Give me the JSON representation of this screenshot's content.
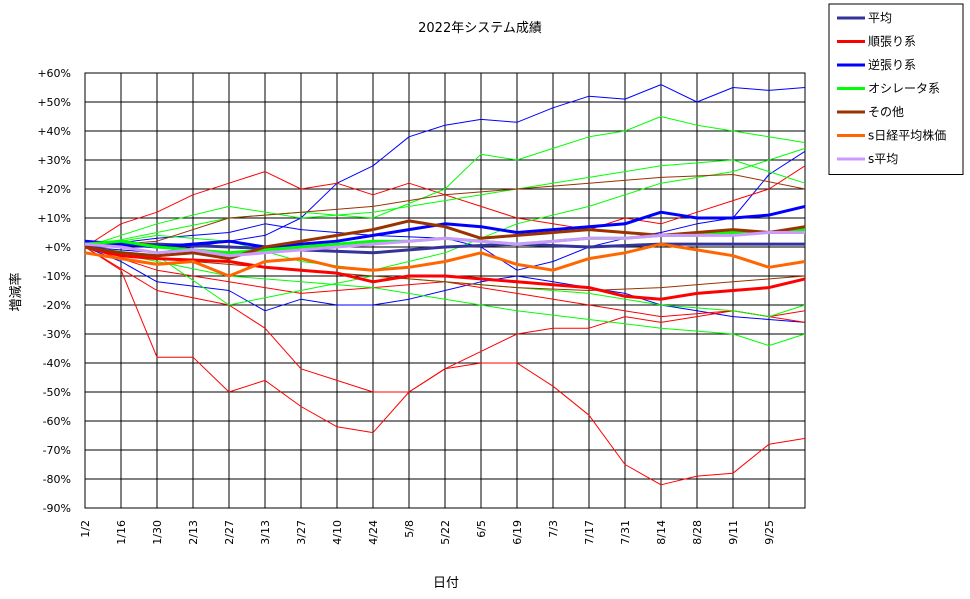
{
  "chart_data": {
    "type": "line",
    "title": "2022年システム成績",
    "xlabel": "日付",
    "ylabel": "増減率",
    "ylim": [
      -90,
      60
    ],
    "y_tick_labels": [
      "+60%",
      "+50%",
      "+40%",
      "+30%",
      "+20%",
      "+10%",
      "+0%",
      "-10%",
      "-20%",
      "-30%",
      "-40%",
      "-50%",
      "-60%",
      "-70%",
      "-80%",
      "-90%"
    ],
    "x_tick_labels": [
      "1/2",
      "1/16",
      "1/30",
      "2/13",
      "2/27",
      "3/13",
      "3/27",
      "4/10",
      "4/24",
      "5/8",
      "5/22",
      "6/5",
      "6/19",
      "7/3",
      "7/17",
      "7/31",
      "8/14",
      "8/28",
      "9/11",
      "9/25"
    ],
    "x_extent_days_after_last_tick": 14,
    "grid": true,
    "legend_position": "top-right",
    "legend": [
      {
        "name": "平均",
        "color": "#333399"
      },
      {
        "name": "順張り系",
        "color": "#ff0000"
      },
      {
        "name": "逆張り系",
        "color": "#0000ff"
      },
      {
        "name": "オシレータ系",
        "color": "#00ff00"
      },
      {
        "name": "その他",
        "color": "#993300"
      },
      {
        "name": "s日経平均株価",
        "color": "#ff6600"
      },
      {
        "name": "s平均",
        "color": "#cc99ff"
      }
    ],
    "aggregate_series": [
      {
        "name": "平均",
        "color": "#333399",
        "x": [
          "1/2",
          "1/30",
          "2/27",
          "3/27",
          "4/24",
          "5/22",
          "6/19",
          "7/17",
          "8/14",
          "9/11",
          "10/9"
        ],
        "values": [
          0,
          1,
          0,
          -1,
          -2,
          0,
          1,
          0,
          1,
          1,
          1
        ]
      },
      {
        "name": "順張り系",
        "color": "#ff0000",
        "x": [
          "1/2",
          "1/16",
          "1/30",
          "2/27",
          "3/13",
          "3/27",
          "4/10",
          "4/24",
          "5/8",
          "5/22",
          "6/5",
          "6/19",
          "7/3",
          "7/17",
          "7/31",
          "8/14",
          "8/28",
          "9/11",
          "9/25",
          "10/9"
        ],
        "values": [
          0,
          -3,
          -4,
          -5,
          -7,
          -8,
          -9,
          -12,
          -10,
          -10,
          -11,
          -12,
          -13,
          -14,
          -17,
          -18,
          -16,
          -15,
          -14,
          -11
        ]
      },
      {
        "name": "逆張り系",
        "color": "#0000ff",
        "x": [
          "1/2",
          "1/16",
          "1/30",
          "2/13",
          "2/27",
          "3/13",
          "3/27",
          "4/10",
          "4/24",
          "5/8",
          "5/22",
          "6/5",
          "6/19",
          "7/3",
          "7/17",
          "7/31",
          "8/14",
          "8/28",
          "9/11",
          "9/25",
          "10/9"
        ],
        "values": [
          2,
          1,
          0,
          1,
          2,
          0,
          1,
          2,
          4,
          6,
          8,
          7,
          5,
          6,
          7,
          8,
          12,
          10,
          10,
          11,
          14
        ]
      },
      {
        "name": "オシレータ系",
        "color": "#00ff00",
        "x": [
          "1/2",
          "1/16",
          "1/30",
          "2/13",
          "2/27",
          "3/13",
          "3/27",
          "4/10",
          "4/24",
          "5/8",
          "5/22",
          "6/5",
          "6/19",
          "7/3",
          "7/17",
          "7/31",
          "8/14",
          "8/28",
          "9/11",
          "9/25",
          "10/9"
        ],
        "values": [
          1,
          2,
          0,
          -1,
          -2,
          -1,
          0,
          1,
          2,
          2,
          3,
          2,
          1,
          2,
          3,
          3,
          4,
          4,
          5,
          5,
          6
        ]
      },
      {
        "name": "その他",
        "color": "#993300",
        "x": [
          "1/2",
          "1/16",
          "1/30",
          "2/13",
          "2/27",
          "3/13",
          "3/27",
          "4/10",
          "4/24",
          "5/8",
          "5/22",
          "6/5",
          "6/19",
          "7/3",
          "7/17",
          "7/31",
          "8/14",
          "8/28",
          "9/11",
          "9/25",
          "10/9"
        ],
        "values": [
          0,
          -2,
          -3,
          -2,
          -4,
          0,
          2,
          4,
          6,
          9,
          7,
          3,
          4,
          5,
          6,
          5,
          4,
          5,
          6,
          5,
          7
        ]
      },
      {
        "name": "s日経平均株価",
        "color": "#ff6600",
        "x": [
          "1/2",
          "1/16",
          "1/30",
          "2/13",
          "2/27",
          "3/13",
          "3/27",
          "4/10",
          "4/24",
          "5/8",
          "5/22",
          "6/5",
          "6/19",
          "7/3",
          "7/17",
          "7/31",
          "8/14",
          "8/28",
          "9/11",
          "9/25",
          "10/9"
        ],
        "values": [
          -2,
          -4,
          -6,
          -5,
          -10,
          -5,
          -4,
          -7,
          -8,
          -7,
          -5,
          -2,
          -6,
          -8,
          -4,
          -2,
          1,
          -1,
          -3,
          -7,
          -5
        ]
      },
      {
        "name": "s平均",
        "color": "#cc99ff",
        "x": [
          "1/2",
          "1/16",
          "1/30",
          "2/13",
          "2/27",
          "3/13",
          "3/27",
          "4/10",
          "4/24",
          "5/8",
          "5/22",
          "6/5",
          "6/19",
          "7/3",
          "7/17",
          "7/31",
          "8/14",
          "8/28",
          "9/11",
          "9/25",
          "10/9"
        ],
        "values": [
          1,
          0,
          -2,
          -1,
          -3,
          -2,
          -1,
          0,
          1,
          2,
          3,
          2,
          1,
          2,
          3,
          3,
          4,
          4,
          4,
          5,
          5
        ]
      }
    ],
    "component_series": [
      {
        "group": "逆張り系",
        "color": "#0000ff",
        "x": [
          "1/2",
          "1/30",
          "3/13",
          "3/27",
          "4/10",
          "4/24",
          "5/8",
          "5/22",
          "6/5",
          "6/19",
          "7/3",
          "7/17",
          "7/31",
          "8/14",
          "8/28",
          "9/11",
          "9/25",
          "10/9"
        ],
        "values": [
          0,
          -2,
          4,
          10,
          22,
          28,
          38,
          42,
          44,
          43,
          48,
          52,
          51,
          56,
          50,
          55,
          54,
          55
        ]
      },
      {
        "group": "逆張り系",
        "color": "#0000ff",
        "x": [
          "1/2",
          "1/16",
          "1/30",
          "2/27",
          "3/13",
          "3/27",
          "4/10",
          "4/24",
          "5/8",
          "5/22",
          "6/5",
          "6/19",
          "7/3",
          "7/17",
          "7/31",
          "8/14",
          "8/28",
          "9/11",
          "9/25",
          "10/9"
        ],
        "values": [
          0,
          -5,
          -12,
          -15,
          -22,
          -18,
          -20,
          -20,
          -18,
          -15,
          -12,
          -10,
          -12,
          -14,
          -16,
          -20,
          -22,
          -24,
          -25,
          -26
        ]
      },
      {
        "group": "逆張り系",
        "color": "#0000ff",
        "x": [
          "1/2",
          "1/30",
          "2/27",
          "3/13",
          "3/27",
          "4/24",
          "5/22",
          "6/5",
          "6/19",
          "7/3",
          "7/17",
          "7/31",
          "8/14",
          "8/28",
          "9/11",
          "9/25",
          "10/9"
        ],
        "values": [
          0,
          3,
          5,
          8,
          6,
          4,
          3,
          0,
          -8,
          -5,
          0,
          3,
          5,
          8,
          10,
          25,
          33
        ]
      },
      {
        "group": "順張り系",
        "color": "#ff0000",
        "x": [
          "1/2",
          "1/16",
          "1/30",
          "2/13",
          "2/27",
          "3/13",
          "3/27",
          "4/10",
          "4/24",
          "5/8",
          "5/22",
          "6/5",
          "6/19",
          "7/3",
          "7/17",
          "7/31",
          "8/14",
          "8/28",
          "9/11",
          "9/25",
          "10/9"
        ],
        "values": [
          0,
          -8,
          -38,
          -38,
          -50,
          -46,
          -55,
          -62,
          -64,
          -50,
          -42,
          -40,
          -40,
          -48,
          -58,
          -75,
          -82,
          -79,
          -78,
          -68,
          -66
        ]
      },
      {
        "group": "順張り系",
        "color": "#ff0000",
        "x": [
          "1/2",
          "1/30",
          "2/27",
          "3/13",
          "3/27",
          "4/10",
          "4/24",
          "5/8",
          "5/22",
          "6/5",
          "6/19",
          "7/3",
          "7/17",
          "7/31",
          "8/14",
          "8/28",
          "9/11",
          "9/25",
          "10/9"
        ],
        "values": [
          0,
          -15,
          -20,
          -28,
          -42,
          -46,
          -50,
          -50,
          -42,
          -36,
          -30,
          -28,
          -28,
          -24,
          -26,
          -24,
          -22,
          -24,
          -22
        ]
      },
      {
        "group": "順張り系",
        "color": "#ff0000",
        "x": [
          "1/2",
          "1/16",
          "1/30",
          "2/13",
          "2/27",
          "3/13",
          "3/27",
          "4/10",
          "4/24",
          "5/8",
          "5/22",
          "6/5",
          "6/19",
          "7/3",
          "7/17",
          "7/31",
          "8/14",
          "8/28",
          "9/11",
          "9/25",
          "10/9"
        ],
        "values": [
          0,
          8,
          12,
          18,
          22,
          26,
          20,
          22,
          18,
          22,
          18,
          14,
          10,
          8,
          6,
          10,
          8,
          12,
          16,
          20,
          28
        ]
      },
      {
        "group": "順張り系",
        "color": "#ff0000",
        "x": [
          "1/2",
          "1/30",
          "2/27",
          "3/27",
          "4/24",
          "5/22",
          "6/19",
          "7/17",
          "8/14",
          "9/11",
          "10/9"
        ],
        "values": [
          0,
          -8,
          -12,
          -16,
          -14,
          -12,
          -16,
          -20,
          -24,
          -22,
          -26
        ]
      },
      {
        "group": "オシレータ系",
        "color": "#00ff00",
        "x": [
          "1/2",
          "1/30",
          "2/27",
          "3/27",
          "4/24",
          "5/22",
          "6/5",
          "6/19",
          "7/3",
          "7/17",
          "7/31",
          "8/14",
          "8/28",
          "9/11",
          "9/25",
          "10/9"
        ],
        "values": [
          0,
          5,
          10,
          12,
          10,
          20,
          32,
          30,
          34,
          38,
          40,
          45,
          42,
          40,
          38,
          36
        ]
      },
      {
        "group": "オシレータ系",
        "color": "#00ff00",
        "x": [
          "1/2",
          "1/30",
          "2/27",
          "3/27",
          "4/24",
          "5/22",
          "6/19",
          "7/17",
          "8/14",
          "9/11",
          "9/25",
          "10/9"
        ],
        "values": [
          0,
          -5,
          -10,
          -12,
          -14,
          -18,
          -22,
          -25,
          -28,
          -30,
          -34,
          -30
        ]
      },
      {
        "group": "オシレータ系",
        "color": "#00ff00",
        "x": [
          "1/2",
          "1/30",
          "2/27",
          "3/27",
          "4/24",
          "5/22",
          "6/19",
          "7/17",
          "8/14",
          "9/11",
          "9/25",
          "10/9"
        ],
        "values": [
          0,
          8,
          14,
          10,
          12,
          16,
          20,
          24,
          28,
          30,
          26,
          22
        ]
      },
      {
        "group": "オシレータ系",
        "color": "#00ff00",
        "x": [
          "1/2",
          "1/30",
          "2/27",
          "3/27",
          "4/24",
          "5/22",
          "6/19",
          "7/17",
          "8/14",
          "9/11",
          "9/25",
          "10/9"
        ],
        "values": [
          0,
          -3,
          -20,
          -15,
          -10,
          -12,
          -14,
          -16,
          -20,
          -22,
          -24,
          -20
        ]
      },
      {
        "group": "オシレータ系",
        "color": "#00ff00",
        "x": [
          "1/2",
          "1/30",
          "2/27",
          "3/27",
          "4/24",
          "5/22",
          "6/19",
          "7/17",
          "8/14",
          "9/11",
          "9/25",
          "10/9"
        ],
        "values": [
          0,
          4,
          2,
          -5,
          -8,
          -2,
          8,
          14,
          22,
          26,
          30,
          34
        ]
      },
      {
        "group": "その他",
        "color": "#993300",
        "x": [
          "1/2",
          "1/30",
          "2/27",
          "3/27",
          "4/24",
          "5/22",
          "6/19",
          "7/17",
          "8/14",
          "9/11",
          "10/9"
        ],
        "values": [
          0,
          2,
          10,
          12,
          14,
          18,
          20,
          22,
          24,
          25,
          20
        ]
      },
      {
        "group": "その他",
        "color": "#993300",
        "x": [
          "1/2",
          "1/30",
          "2/27",
          "3/27",
          "4/24",
          "5/22",
          "6/19",
          "7/17",
          "8/14",
          "9/11",
          "10/9"
        ],
        "values": [
          0,
          -4,
          -6,
          -8,
          -10,
          -12,
          -14,
          -15,
          -14,
          -12,
          -10
        ]
      }
    ]
  }
}
